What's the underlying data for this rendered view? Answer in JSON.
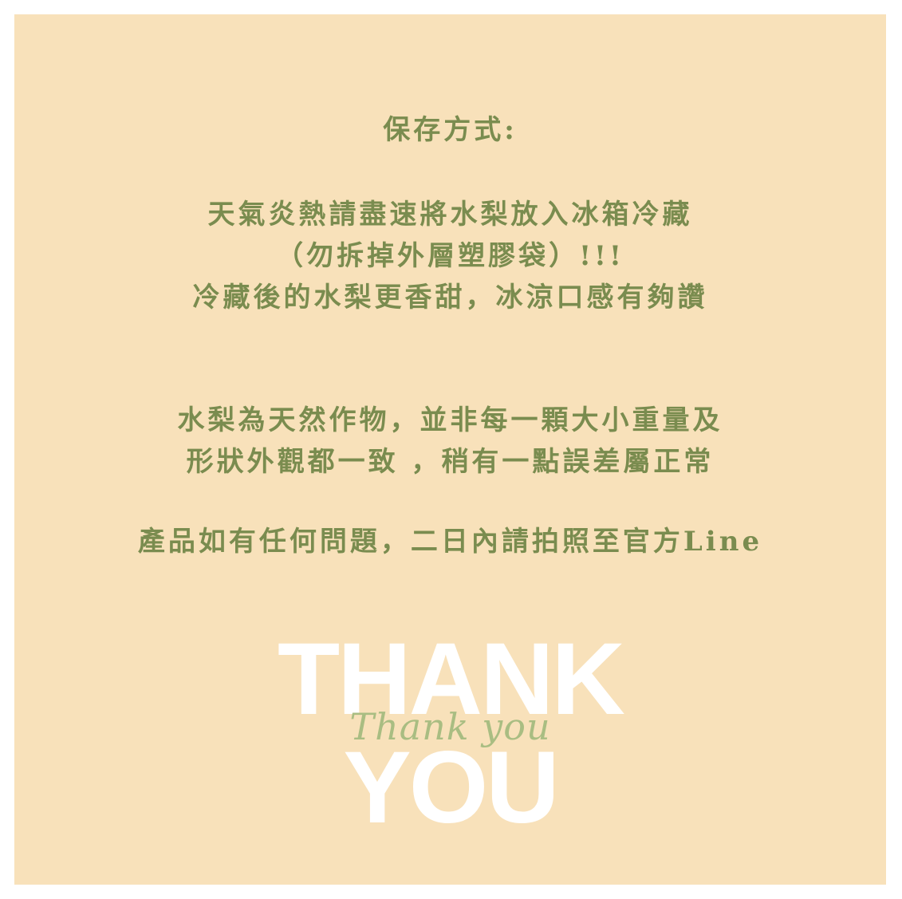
{
  "storage": {
    "heading": "保存方式:",
    "line1": "天氣炎熱請盡速將水梨放入冰箱冷藏",
    "line2": "（勿拆掉外層塑膠袋）!!!",
    "line3": "冷藏後的水梨更香甜，冰涼口感有夠讚"
  },
  "notice": {
    "line1": "水梨為天然作物，並非每一顆大小重量及",
    "line2": "形狀外觀都一致 ，稍有一點誤差屬正常",
    "line3": "產品如有任何問題，二日內請拍照至官方Line"
  },
  "thanks": {
    "word1": "THANK",
    "word2": "YOU",
    "script": "Thank you"
  },
  "colors": {
    "background": "#f8e1ba",
    "text": "#7a8c4f",
    "thanks_big": "#ffffff",
    "thanks_script": "#a9bd82"
  }
}
